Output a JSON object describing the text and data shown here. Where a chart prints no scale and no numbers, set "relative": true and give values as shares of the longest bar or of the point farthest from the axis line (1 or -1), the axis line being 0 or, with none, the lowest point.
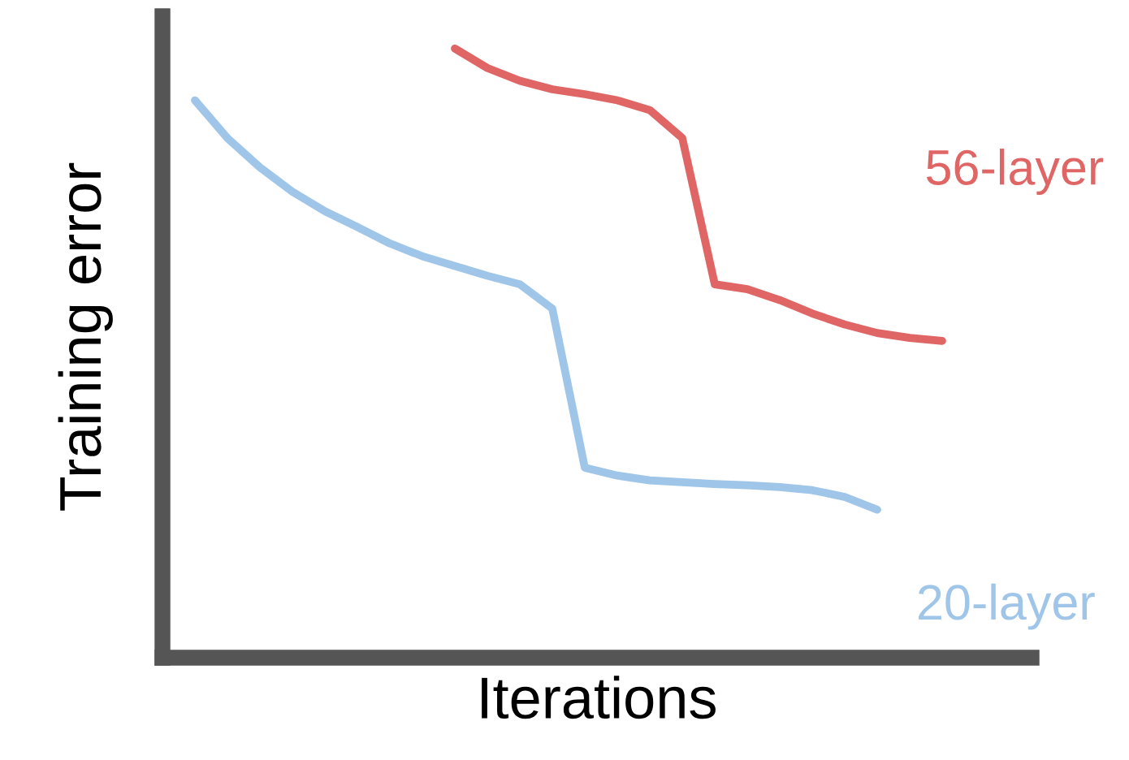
{
  "chart_data": {
    "type": "line",
    "relative": true,
    "xlabel": "Iterations",
    "ylabel": "Training error",
    "categories": [
      null,
      null,
      null,
      null,
      null,
      null,
      null,
      null,
      null,
      null,
      null,
      null,
      null,
      null,
      null,
      null,
      null,
      null,
      null,
      null,
      null,
      null,
      null,
      null
    ],
    "series": [
      {
        "name": "56-layer",
        "color": "#e06666",
        "values": [
          null,
          null,
          null,
          null,
          null,
          null,
          null,
          null,
          1.0,
          0.968,
          0.947,
          0.933,
          0.925,
          0.915,
          0.899,
          0.853,
          0.613,
          0.605,
          0.587,
          0.565,
          0.547,
          0.533,
          0.525,
          0.52
        ]
      },
      {
        "name": "20-layer",
        "color": "#9fc5e8",
        "values": [
          0.915,
          0.853,
          0.805,
          0.765,
          0.733,
          0.707,
          0.68,
          0.659,
          0.643,
          0.627,
          0.613,
          0.573,
          0.312,
          0.299,
          0.291,
          0.288,
          0.285,
          0.283,
          0.28,
          0.275,
          0.264,
          0.243,
          null,
          null
        ]
      }
    ],
    "legend": false,
    "marker": "none",
    "line_style": "solid"
  }
}
